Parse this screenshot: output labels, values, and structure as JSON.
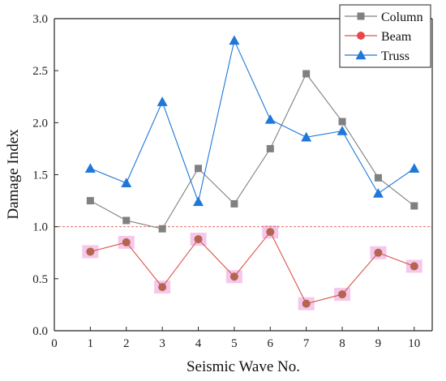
{
  "chart_data": {
    "type": "line",
    "title": "",
    "xlabel": "Seismic Wave No.",
    "ylabel": "Damage  Index",
    "xlim": [
      0,
      10.5
    ],
    "ylim": [
      0,
      3.0
    ],
    "xticks": [
      0,
      1,
      2,
      3,
      4,
      5,
      6,
      7,
      8,
      9,
      10
    ],
    "yticks": [
      0.0,
      0.5,
      1.0,
      1.5,
      2.0,
      2.5,
      3.0
    ],
    "xtick_labels": [
      "0",
      "1",
      "2",
      "3",
      "4",
      "5",
      "6",
      "7",
      "8",
      "9",
      "10"
    ],
    "ytick_labels": [
      "0.0",
      "0.5",
      "1.0",
      "1.5",
      "2.0",
      "2.5",
      "3.0"
    ],
    "x": [
      1,
      2,
      3,
      4,
      5,
      6,
      7,
      8,
      9,
      10
    ],
    "series": [
      {
        "name": "Column",
        "values": [
          1.25,
          1.06,
          0.98,
          1.56,
          1.22,
          1.75,
          2.47,
          2.01,
          1.47,
          1.2
        ],
        "color": "#808080",
        "marker": "square"
      },
      {
        "name": "Beam",
        "values": [
          0.76,
          0.85,
          0.42,
          0.88,
          0.52,
          0.95,
          0.26,
          0.35,
          0.75,
          0.62
        ],
        "color": "#d9534f",
        "marker": "circle"
      },
      {
        "name": "Truss",
        "values": [
          1.56,
          1.42,
          2.2,
          1.24,
          2.79,
          2.03,
          1.86,
          1.92,
          1.32,
          1.56
        ],
        "color": "#1f78d8",
        "marker": "triangle"
      }
    ],
    "reference_line": {
      "y": 1.0,
      "style": "dashed",
      "color": "#d9534f"
    },
    "legend_position": "top-right",
    "grid": false,
    "marker_highlight_color": "#f3bde8"
  }
}
